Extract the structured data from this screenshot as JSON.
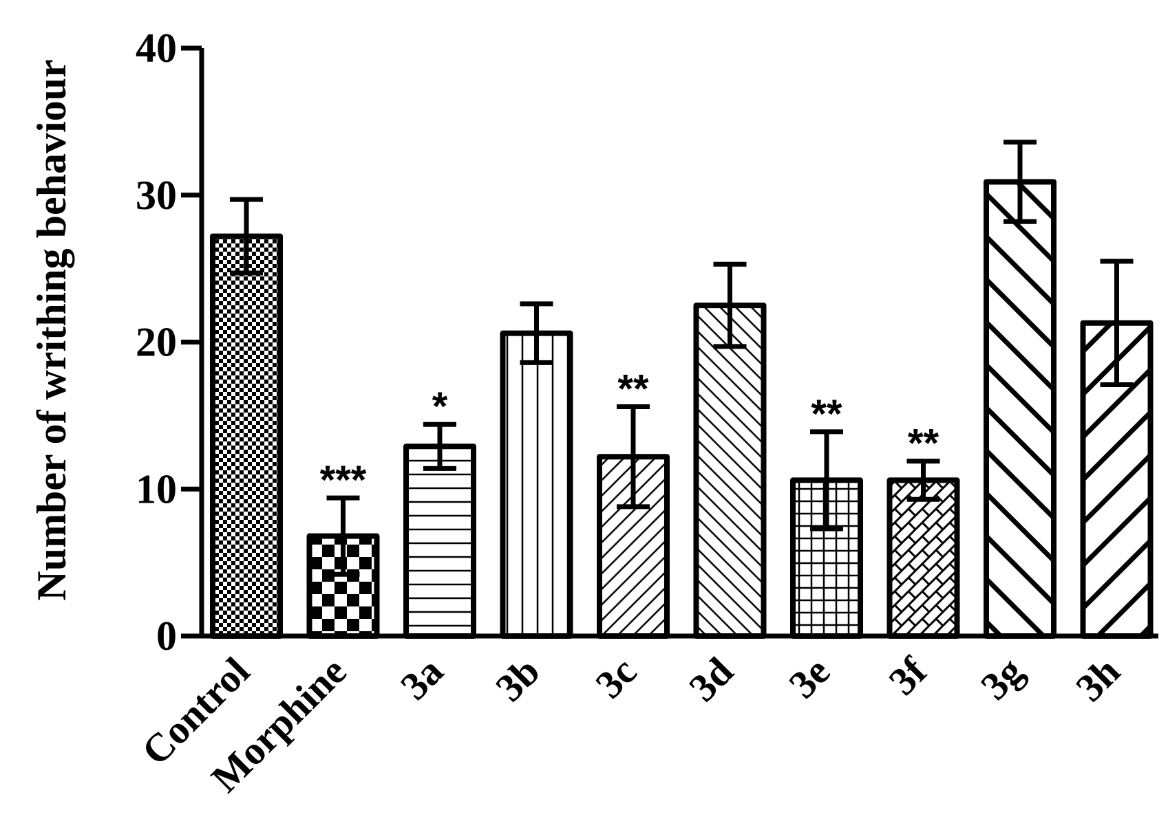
{
  "chart_data": {
    "type": "bar",
    "ylabel": "Number of writhing behaviour",
    "xlabel": "",
    "ylim": [
      0,
      40
    ],
    "yticks": [
      0,
      10,
      20,
      30,
      40
    ],
    "categories": [
      "Control",
      "Morphine",
      "3a",
      "3b",
      "3c",
      "3d",
      "3e",
      "3f",
      "3g",
      "3h"
    ],
    "values": [
      27.2,
      6.8,
      12.9,
      20.6,
      12.2,
      22.5,
      10.6,
      10.6,
      30.9,
      21.3
    ],
    "errors": [
      2.5,
      2.6,
      1.5,
      2.0,
      3.4,
      2.8,
      3.3,
      1.3,
      2.7,
      4.2
    ],
    "significance": [
      "",
      "***",
      "*",
      "",
      "**",
      "",
      "**",
      "**",
      "",
      ""
    ],
    "patterns": [
      "fine-checker",
      "large-checker",
      "horizontal-lines",
      "vertical-lines",
      "diagonal-up-thin",
      "diagonal-down-thin",
      "grid",
      "crosshatch-diagonal",
      "diagonal-down-thick",
      "diagonal-up-thick"
    ],
    "bar_color": "#000000",
    "background": "#ffffff",
    "grid": false,
    "legend": "none"
  }
}
